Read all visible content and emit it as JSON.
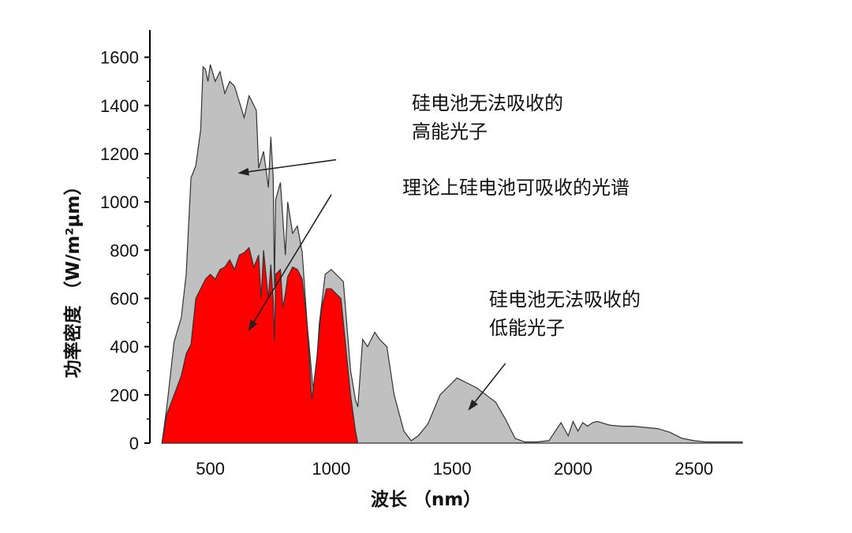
{
  "chart_data": {
    "type": "area",
    "xlabel": "波长 （nm）",
    "ylabel": "功率密度 （W/m²μm）",
    "xlim": [
      250,
      2700
    ],
    "ylim": [
      0,
      1700
    ],
    "x_ticks": [
      500,
      1000,
      1500,
      2000,
      2500
    ],
    "y_ticks": [
      0,
      200,
      400,
      600,
      800,
      1000,
      1200,
      1400,
      1600
    ],
    "x_tick_labels": [
      "500",
      "1000",
      "1500",
      "2000",
      "2500"
    ],
    "y_tick_labels": [
      "0",
      "200",
      "400",
      "600",
      "800",
      "1000",
      "1200",
      "1400",
      "1600"
    ],
    "grid": false,
    "series": [
      {
        "color": "#c0c0c0",
        "x": [
          300,
          320,
          350,
          380,
          400,
          420,
          440,
          460,
          470,
          480,
          490,
          500,
          520,
          540,
          560,
          580,
          600,
          640,
          660,
          690,
          700,
          720,
          740,
          750,
          760,
          765,
          770,
          790,
          810,
          820,
          840,
          860,
          880,
          900,
          930,
          950,
          975,
          1000,
          1050,
          1080,
          1100,
          1110,
          1130,
          1150,
          1180,
          1200,
          1230,
          1260,
          1300,
          1330,
          1360,
          1400,
          1450,
          1500,
          1520,
          1560,
          1600,
          1640,
          1680,
          1720,
          1760,
          1800,
          1850,
          1900,
          1950,
          1980,
          2000,
          2020,
          2040,
          2060,
          2080,
          2100,
          2150,
          2200,
          2250,
          2300,
          2350,
          2400,
          2450,
          2500,
          2550,
          2600,
          2700
        ],
        "y": [
          0,
          150,
          420,
          520,
          700,
          1100,
          1150,
          1300,
          1560,
          1550,
          1500,
          1570,
          1500,
          1540,
          1450,
          1500,
          1480,
          1350,
          1440,
          1380,
          1140,
          1210,
          1060,
          1270,
          1100,
          650,
          1010,
          1080,
          780,
          1000,
          870,
          900,
          790,
          500,
          170,
          490,
          700,
          720,
          670,
          300,
          180,
          150,
          430,
          400,
          460,
          430,
          400,
          200,
          50,
          10,
          30,
          80,
          200,
          250,
          270,
          250,
          230,
          200,
          170,
          100,
          20,
          5,
          5,
          10,
          85,
          30,
          90,
          50,
          85,
          70,
          85,
          90,
          75,
          70,
          70,
          65,
          60,
          45,
          20,
          10,
          5,
          5,
          5
        ]
      },
      {
        "color": "#ff0000",
        "x": [
          300,
          320,
          350,
          380,
          400,
          420,
          440,
          460,
          480,
          500,
          520,
          540,
          560,
          580,
          600,
          620,
          640,
          660,
          680,
          700,
          710,
          720,
          730,
          740,
          750,
          760,
          765,
          770,
          790,
          800,
          810,
          820,
          840,
          860,
          880,
          900,
          920,
          940,
          960,
          980,
          1000,
          1020,
          1040,
          1060,
          1080,
          1100,
          1110
        ],
        "y": [
          0,
          120,
          200,
          280,
          370,
          410,
          600,
          640,
          680,
          700,
          680,
          720,
          730,
          760,
          720,
          780,
          790,
          810,
          730,
          780,
          600,
          800,
          700,
          600,
          740,
          600,
          420,
          700,
          720,
          560,
          620,
          690,
          730,
          720,
          680,
          500,
          180,
          350,
          560,
          640,
          640,
          620,
          600,
          400,
          200,
          50,
          0
        ]
      }
    ],
    "annotations": [
      {
        "lines": [
          "硅电池无法吸收的",
          "高能光子"
        ],
        "arrow_from": [
          1020,
          1175
        ],
        "arrow_to": [
          620,
          1120
        ]
      },
      {
        "lines": [
          "理论上硅电池可吸收的光谱"
        ],
        "arrow_from": [
          1000,
          1030
        ],
        "arrow_to": [
          660,
          470
        ]
      },
      {
        "lines": [
          "硅电池无法吸收的",
          "低能光子"
        ],
        "arrow_from": [
          1720,
          330
        ],
        "arrow_to": [
          1570,
          140
        ]
      }
    ]
  }
}
